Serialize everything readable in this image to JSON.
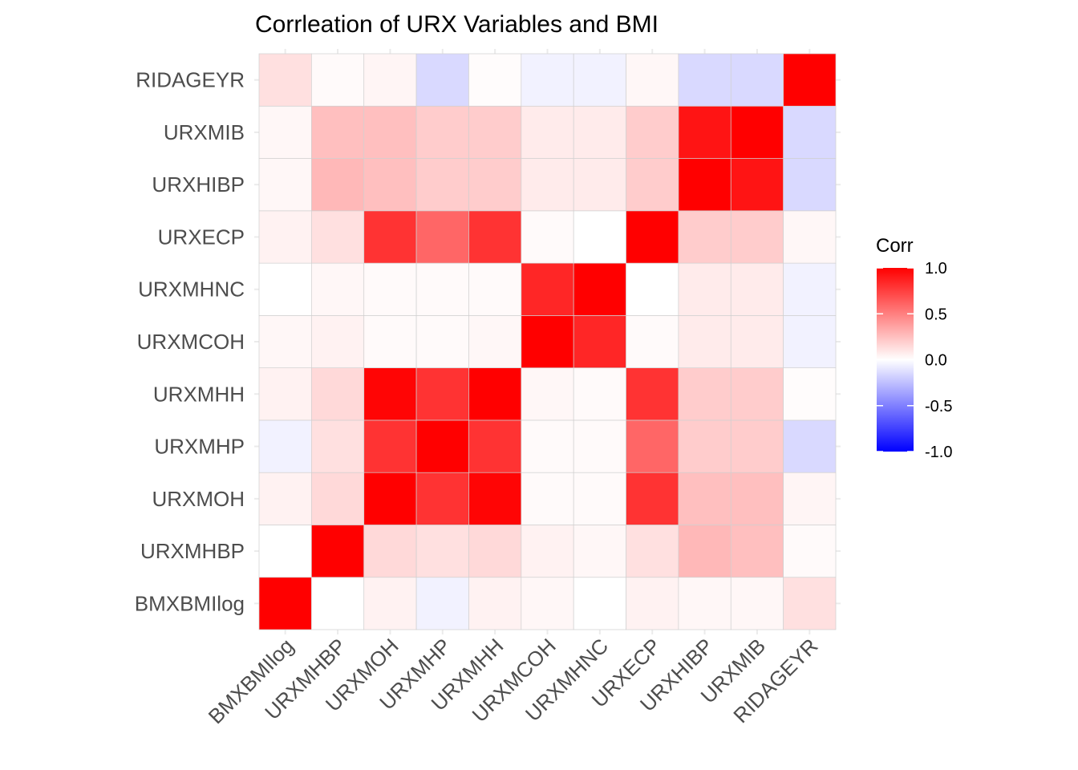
{
  "chart_data": {
    "type": "heatmap",
    "title": "Corrleation of URX Variables and BMI",
    "xlabel": "",
    "ylabel": "",
    "variables": [
      "BMXBMIlog",
      "URXMHBP",
      "URXMOH",
      "URXMHP",
      "URXMHH",
      "URXMCOH",
      "URXMHNC",
      "URXECP",
      "URXHIBP",
      "URXMIB",
      "RIDAGEYR"
    ],
    "matrix": [
      [
        1.0,
        0.0,
        0.05,
        -0.05,
        0.05,
        0.03,
        0.0,
        0.05,
        0.03,
        0.03,
        0.12
      ],
      [
        0.0,
        1.0,
        0.15,
        0.12,
        0.15,
        0.05,
        0.03,
        0.12,
        0.28,
        0.25,
        0.02
      ],
      [
        0.05,
        0.15,
        1.0,
        0.8,
        0.98,
        0.02,
        0.02,
        0.8,
        0.25,
        0.25,
        0.04
      ],
      [
        -0.05,
        0.12,
        0.8,
        1.0,
        0.8,
        0.02,
        0.02,
        0.6,
        0.2,
        0.2,
        -0.15
      ],
      [
        0.05,
        0.15,
        0.98,
        0.8,
        1.0,
        0.03,
        0.02,
        0.8,
        0.2,
        0.2,
        0.01
      ],
      [
        0.03,
        0.05,
        0.02,
        0.02,
        0.03,
        1.0,
        0.85,
        0.02,
        0.08,
        0.08,
        -0.05
      ],
      [
        0.0,
        0.03,
        0.02,
        0.02,
        0.02,
        0.85,
        1.0,
        0.0,
        0.08,
        0.08,
        -0.05
      ],
      [
        0.05,
        0.12,
        0.8,
        0.6,
        0.8,
        0.02,
        0.0,
        1.0,
        0.2,
        0.2,
        0.03
      ],
      [
        0.03,
        0.28,
        0.25,
        0.2,
        0.2,
        0.08,
        0.08,
        0.2,
        1.0,
        0.92,
        -0.15
      ],
      [
        0.03,
        0.25,
        0.25,
        0.2,
        0.2,
        0.08,
        0.08,
        0.2,
        0.92,
        1.0,
        -0.15
      ],
      [
        0.12,
        0.02,
        0.04,
        -0.15,
        0.01,
        -0.05,
        -0.05,
        0.03,
        -0.15,
        -0.15,
        1.0
      ]
    ],
    "legend": {
      "title": "Corr",
      "placement": "right",
      "range": [
        -1.0,
        1.0
      ],
      "ticks": [
        "1.0",
        "0.5",
        "0.0",
        "-0.5",
        "-1.0"
      ],
      "tick_values": [
        1.0,
        0.5,
        0.0,
        -0.5,
        -1.0
      ]
    },
    "colors": {
      "low": "#0000ff",
      "mid": "#ffffff",
      "high": "#ff0000"
    },
    "grid": true
  }
}
